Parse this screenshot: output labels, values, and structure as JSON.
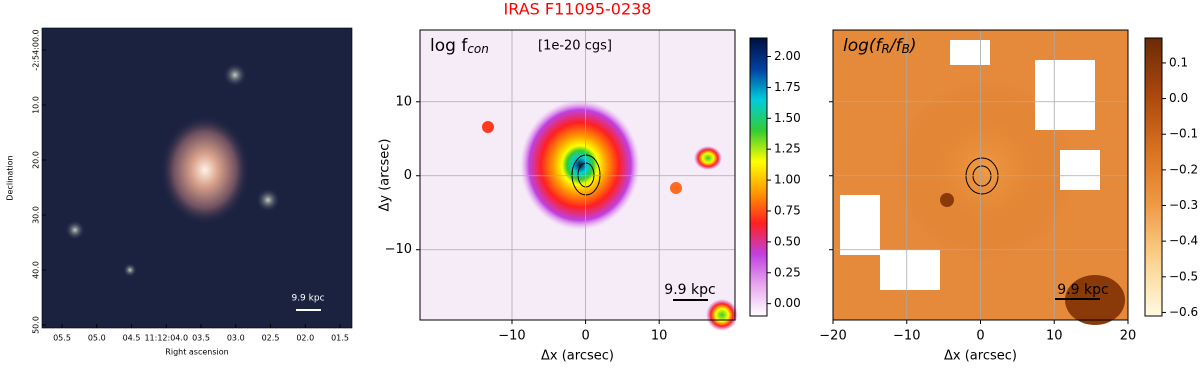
{
  "chart_data": [
    {
      "type": "sky-image",
      "xlabel": "Right ascension",
      "ylabel": "Declination",
      "x_tick_labels": [
        "05.5",
        "05.0",
        "04.5",
        "11:12:04.0",
        "03.5",
        "03.0",
        "02.5",
        "02.0",
        "01.5"
      ],
      "y_tick_labels": [
        "-2:54:00.0",
        "10.0",
        "20.0",
        "30.0",
        "40.0",
        "50.0"
      ],
      "scale_label": "9.9 kpc"
    },
    {
      "type": "map",
      "title": "IRAS F11095-0238",
      "xlabel": "Δx (arcsec)",
      "ylabel": "Δy (arcsec)",
      "panel_label": "log f",
      "panel_label_sub": "con",
      "unit_label": "[1e-20 cgs]",
      "xlim": [
        -22.5,
        20.3
      ],
      "ylim": [
        -19.5,
        19.7
      ],
      "xticks": [
        {
          "value": -10,
          "label": "−10"
        },
        0,
        10
      ],
      "yticks": [
        {
          "value": -10,
          "label": "−10"
        },
        0,
        10
      ],
      "show_ytick_labels": true,
      "grid": true,
      "colormap": [
        "#ffffff",
        "#e9a8f0",
        "#c040e0",
        "#ff2020",
        "#ff9900",
        "#ffff00",
        "#33cc33",
        "#00ccdd",
        "#0040a0",
        "#001040"
      ],
      "clim": [
        -0.1,
        2.15
      ],
      "cticks": [
        {
          "value": 0,
          "label": "0.00"
        },
        {
          "value": 0.25,
          "label": "0.25"
        },
        {
          "value": 0.5,
          "label": "0.50"
        },
        {
          "value": 0.75,
          "label": "0.75"
        },
        {
          "value": 1,
          "label": "1.00"
        },
        {
          "value": 1.25,
          "label": "1.25"
        },
        {
          "value": 1.5,
          "label": "1.50"
        },
        {
          "value": 1.75,
          "label": "1.75"
        },
        {
          "value": 2,
          "label": "2.00"
        }
      ],
      "scale_label": "9.9 kpc"
    },
    {
      "type": "map",
      "xlabel": "Δx (arcsec)",
      "panel_label": "log(f",
      "panel_label_sub": "R",
      "panel_label_mid": "/f",
      "panel_label_sub2": "B",
      "panel_label_end": ")",
      "xlim": [
        -20,
        20
      ],
      "ylim": [
        -19.5,
        19.7
      ],
      "xticks": [
        {
          "value": -20,
          "label": "−20"
        },
        {
          "value": -10,
          "label": "−10"
        },
        0,
        10,
        20
      ],
      "yticks": [
        -10,
        0,
        10
      ],
      "show_ytick_labels": false,
      "grid": true,
      "colormap": [
        "#fffbe0",
        "#fbd38f",
        "#ef9a45",
        "#d8711f",
        "#a9470d",
        "#6b2a05"
      ],
      "clim": [
        -0.61,
        0.17
      ],
      "cticks": [
        {
          "value": 0.1,
          "label": "0.1"
        },
        {
          "value": 0,
          "label": "0.0"
        },
        {
          "value": -0.1,
          "label": "−0.1"
        },
        {
          "value": -0.2,
          "label": "−0.2"
        },
        {
          "value": -0.3,
          "label": "−0.3"
        },
        {
          "value": -0.4,
          "label": "−0.4"
        },
        {
          "value": -0.5,
          "label": "−0.5"
        },
        {
          "value": -0.6,
          "label": "−0.6"
        }
      ],
      "scale_label": "9.9 kpc"
    }
  ]
}
